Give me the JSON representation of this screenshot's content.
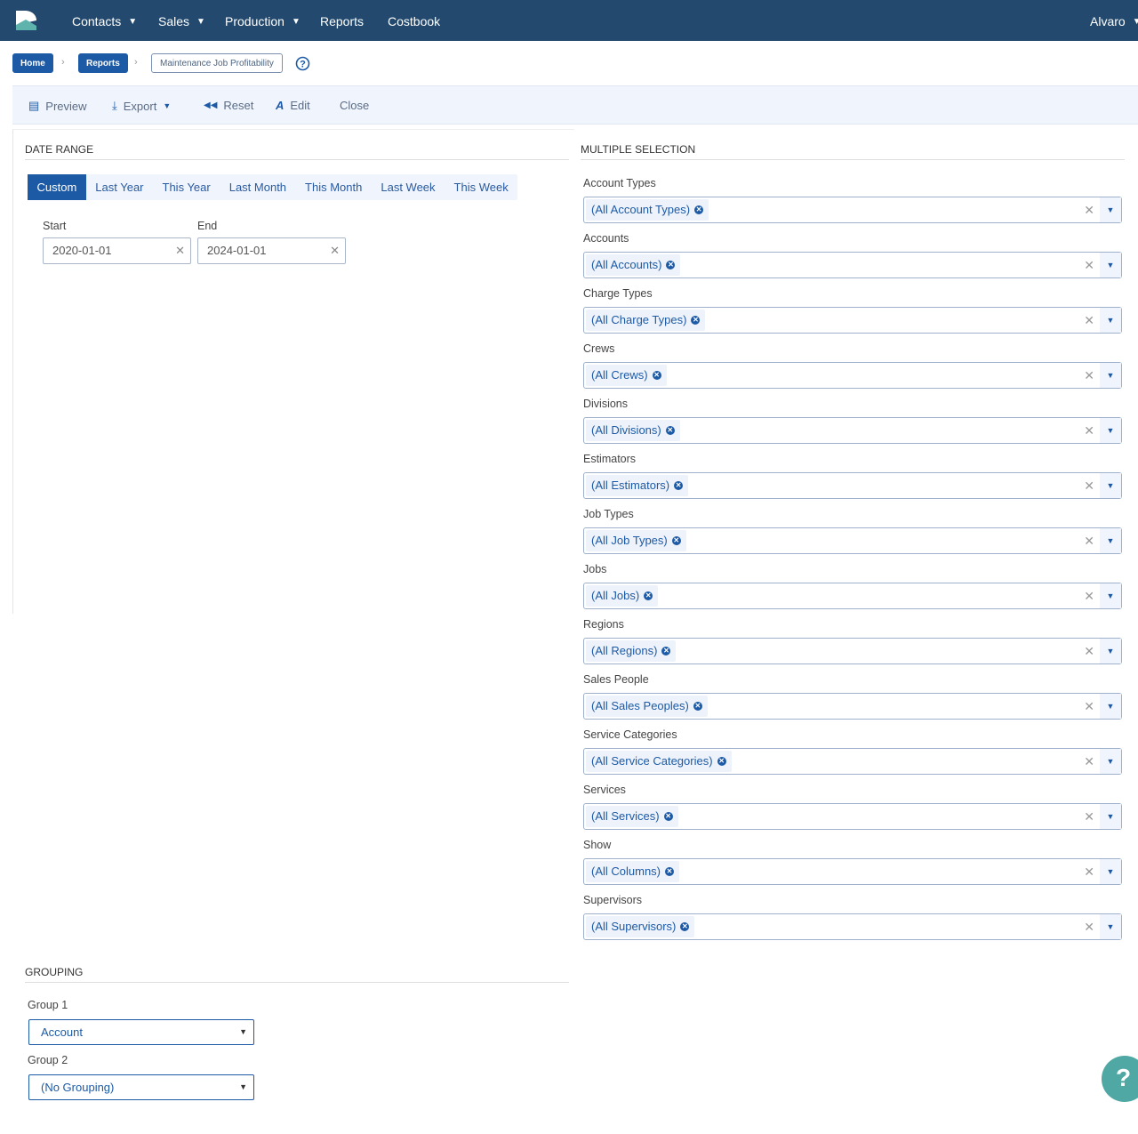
{
  "nav": {
    "items": [
      {
        "label": "Contacts",
        "caret": true
      },
      {
        "label": "Sales",
        "caret": true
      },
      {
        "label": "Production",
        "caret": true
      },
      {
        "label": "Reports",
        "caret": false
      },
      {
        "label": "Costbook",
        "caret": false
      }
    ],
    "user": "Alvaro"
  },
  "breadcrumb": {
    "home": "Home",
    "reports": "Reports",
    "current": "Maintenance Job Profitability"
  },
  "toolbar": {
    "preview": "Preview",
    "export": "Export",
    "reset": "Reset",
    "edit": "Edit",
    "close": "Close"
  },
  "date_range": {
    "title": "DATE RANGE",
    "tabs": [
      "Custom",
      "Last Year",
      "This Year",
      "Last Month",
      "This Month",
      "Last Week",
      "This Week"
    ],
    "active": "Custom",
    "start_label": "Start",
    "end_label": "End",
    "start": "2020-01-01",
    "end": "2024-01-01"
  },
  "multi": {
    "title": "MULTIPLE SELECTION",
    "fields": [
      {
        "label": "Account Types",
        "value": "(All Account Types)"
      },
      {
        "label": "Accounts",
        "value": "(All Accounts)"
      },
      {
        "label": "Charge Types",
        "value": "(All Charge Types)"
      },
      {
        "label": "Crews",
        "value": "(All Crews)"
      },
      {
        "label": "Divisions",
        "value": "(All Divisions)"
      },
      {
        "label": "Estimators",
        "value": "(All Estimators)"
      },
      {
        "label": "Job Types",
        "value": "(All Job Types)"
      },
      {
        "label": "Jobs",
        "value": "(All Jobs)"
      },
      {
        "label": "Regions",
        "value": "(All Regions)"
      },
      {
        "label": "Sales People",
        "value": "(All Sales Peoples)"
      },
      {
        "label": "Service Categories",
        "value": "(All Service Categories)"
      },
      {
        "label": "Services",
        "value": "(All Services)"
      },
      {
        "label": "Show",
        "value": "(All Columns)"
      },
      {
        "label": "Supervisors",
        "value": "(All Supervisors)"
      }
    ]
  },
  "grouping": {
    "title": "GROUPING",
    "group1_label": "Group 1",
    "group1": "Account",
    "group2_label": "Group 2",
    "group2": "(No Grouping)"
  },
  "help": "?",
  "colors": {
    "nav": "#234a6e",
    "accent": "#1d5aa6",
    "help": "#4fa8a4"
  }
}
